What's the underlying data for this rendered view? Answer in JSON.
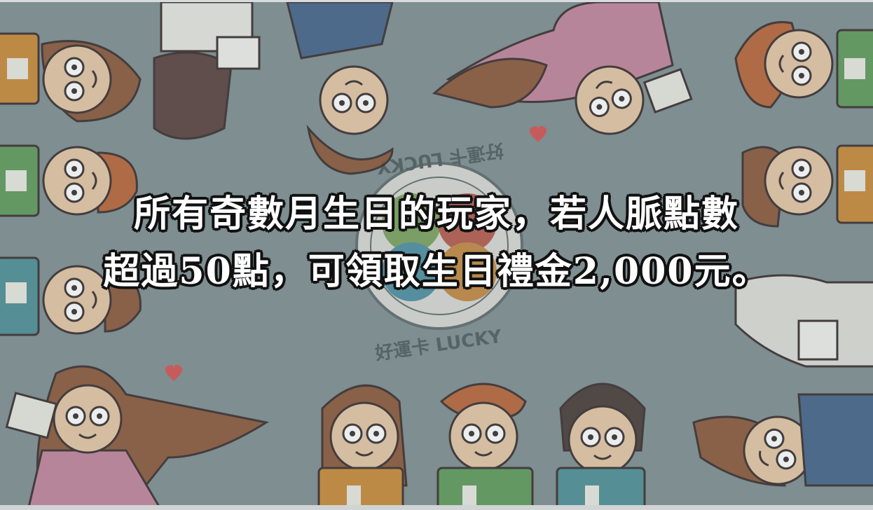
{
  "caption": {
    "line1": "所有奇數月生日的玩家，若人脈點數",
    "line2": "超過50點，可領取生日禮金2,000元。"
  },
  "logo": {
    "text_bottom": "好運卡 LUCKY",
    "text_top": "好運卡 LUCKY"
  },
  "colors": {
    "background": "#7e8e91",
    "skin": "#e6c9a8",
    "hair_brown": "#8b5a3c",
    "hair_orange": "#b8653a",
    "card_green": "#5f9a5a",
    "card_orange": "#c98a3a",
    "card_teal": "#4f8f95",
    "pink_shirt": "#c2849b",
    "blue_shirt": "#45648a",
    "clover_green": "#7aa35b",
    "clover_red": "#b9584b",
    "clover_blue": "#4a8fa3",
    "clover_orange": "#c6893e"
  },
  "icons": [
    "heart-icon",
    "clover-logo-icon"
  ]
}
